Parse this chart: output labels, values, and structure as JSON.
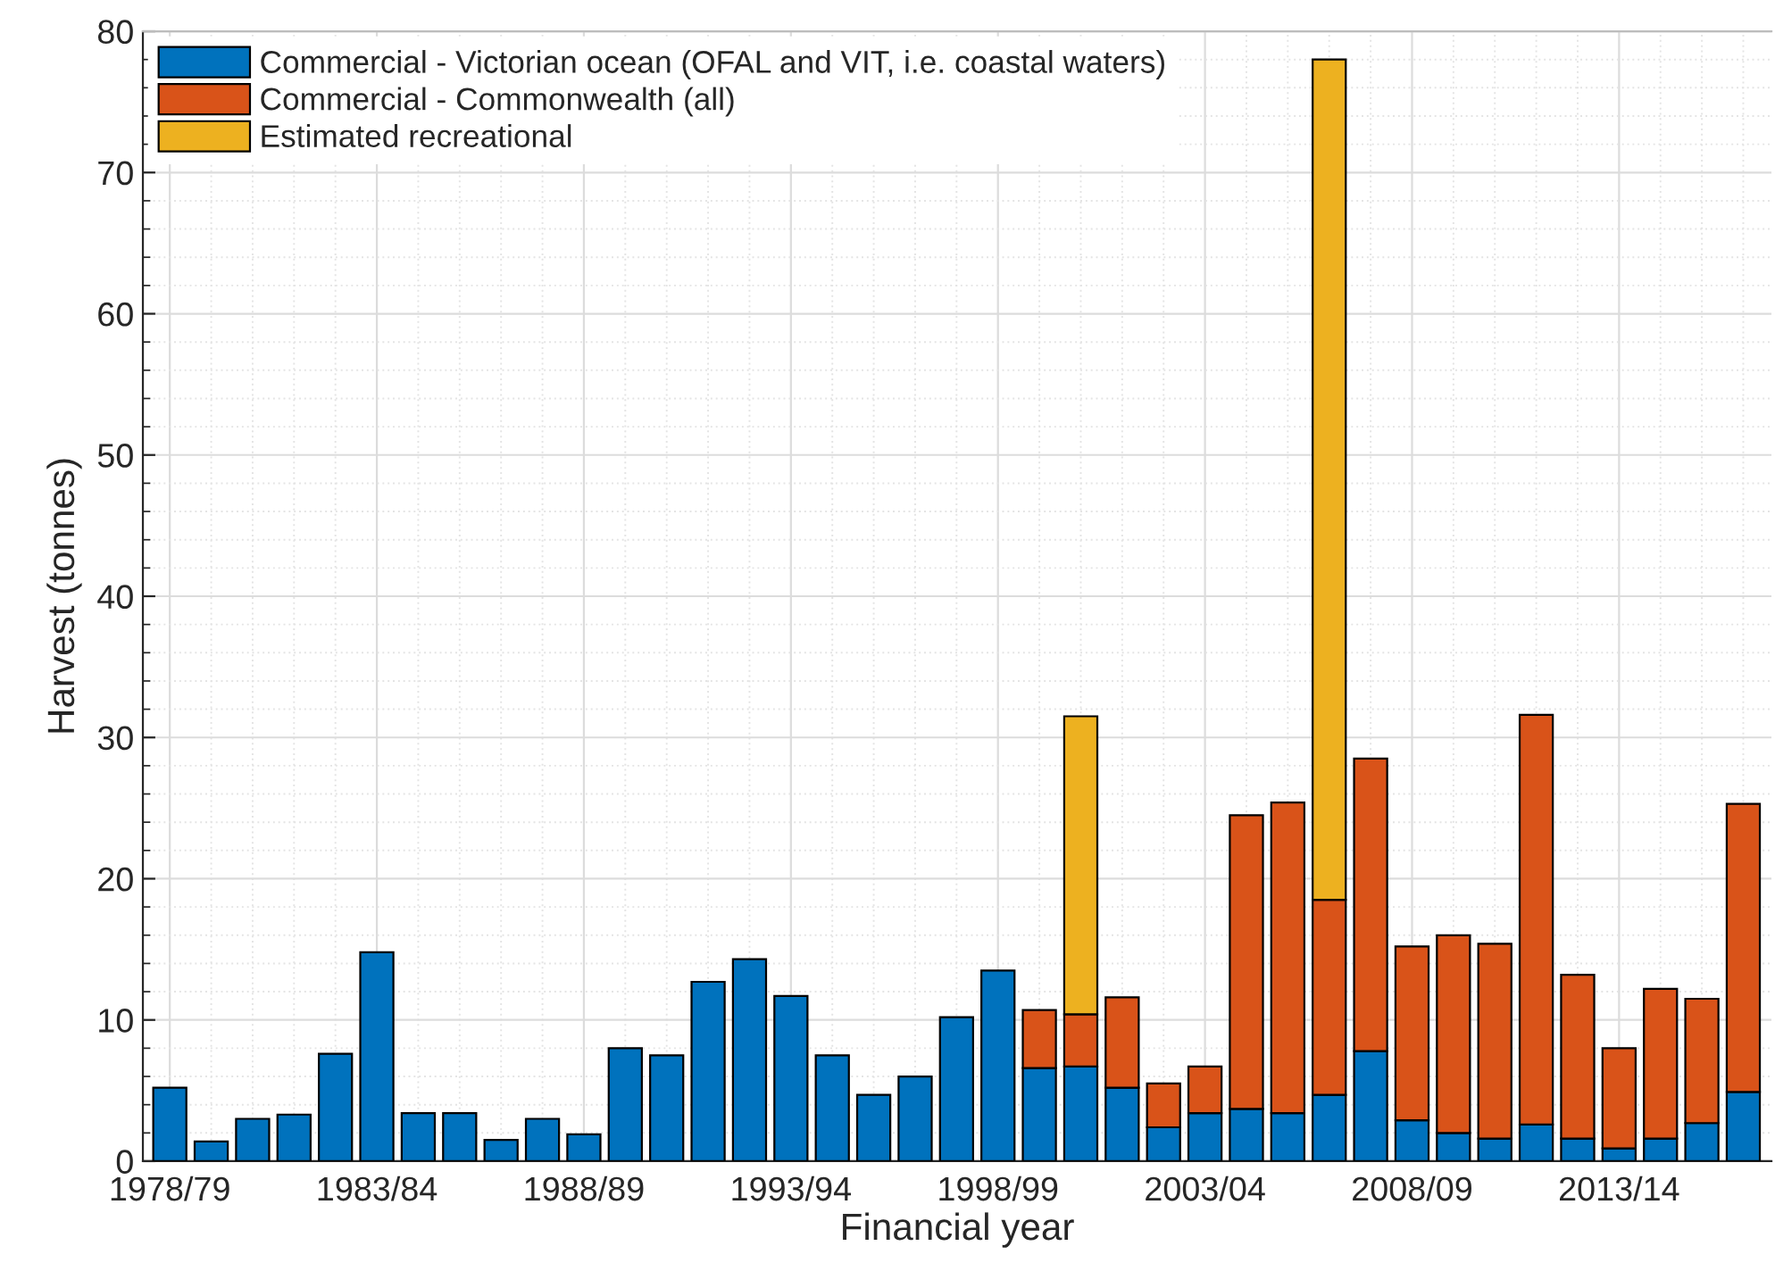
{
  "chart_data": {
    "type": "bar",
    "stacked": true,
    "xlabel": "Financial year",
    "ylabel": "Harvest (tonnes)",
    "categories": [
      "1978/79",
      null,
      null,
      null,
      null,
      "1983/84",
      null,
      null,
      null,
      null,
      "1988/89",
      null,
      null,
      null,
      null,
      "1993/94",
      null,
      null,
      null,
      null,
      "1998/99",
      null,
      null,
      null,
      null,
      "2003/04",
      null,
      null,
      null,
      null,
      "2008/09",
      null,
      null,
      null,
      null,
      "2013/14",
      null,
      null,
      null
    ],
    "series": [
      {
        "name": "Commercial - Victorian ocean (OFAL and VIT, i.e. coastal waters)",
        "color": "#0072bd",
        "values": [
          5.2,
          1.4,
          3.0,
          3.3,
          7.6,
          14.8,
          3.4,
          3.4,
          1.5,
          3.0,
          1.9,
          8.0,
          7.5,
          12.7,
          14.3,
          11.7,
          7.5,
          4.7,
          6.0,
          10.2,
          13.5,
          6.6,
          6.7,
          5.2,
          2.4,
          3.4,
          3.7,
          3.4,
          4.7,
          7.8,
          2.9,
          2.0,
          1.6,
          2.6,
          1.6,
          0.9,
          1.6,
          2.7,
          4.9
        ]
      },
      {
        "name": "Commercial - Commonwealth (all)",
        "color": "#d95319",
        "values": [
          null,
          null,
          null,
          null,
          null,
          null,
          null,
          null,
          null,
          null,
          null,
          null,
          null,
          null,
          null,
          null,
          null,
          null,
          null,
          null,
          null,
          4.1,
          3.7,
          6.4,
          3.1,
          3.3,
          20.8,
          22.0,
          13.8,
          20.7,
          12.3,
          14.0,
          13.8,
          29.0,
          11.6,
          7.1,
          10.6,
          8.8,
          20.4
        ]
      },
      {
        "name": "Estimated recreational",
        "color": "#edb120",
        "values": [
          null,
          null,
          null,
          null,
          null,
          null,
          null,
          null,
          null,
          null,
          null,
          null,
          null,
          null,
          null,
          null,
          null,
          null,
          null,
          null,
          null,
          null,
          21.1,
          null,
          null,
          null,
          null,
          null,
          59.5,
          null,
          null,
          null,
          null,
          null,
          null,
          null,
          null,
          null,
          null
        ]
      }
    ],
    "ylim": [
      0,
      80
    ],
    "yticks": [
      0,
      10,
      20,
      30,
      40,
      50,
      60,
      70,
      80
    ],
    "grid": true,
    "legend": "top left"
  }
}
